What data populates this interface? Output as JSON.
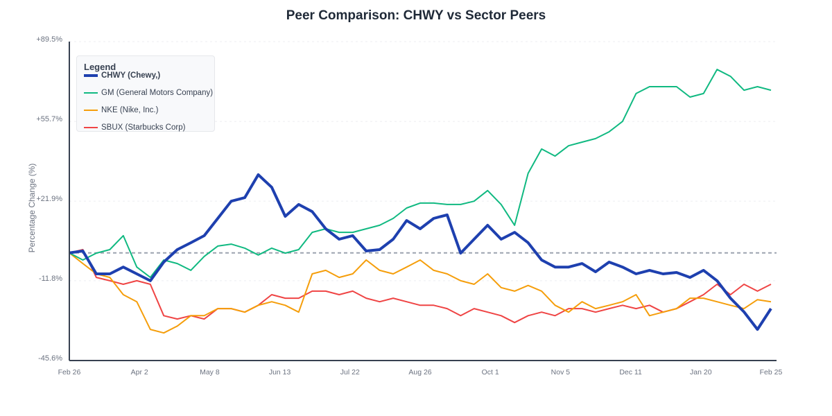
{
  "chart_data": {
    "type": "line",
    "title": "Peer Comparison: CHWY vs Sector Peers",
    "ylabel": "Percentage Change (%)",
    "xlabel": "",
    "ylim": [
      -45.6,
      89.5
    ],
    "y_ticks": [
      "+89.5%",
      "+55.7%",
      "+21.9%",
      "-11.8%",
      "-45.6%"
    ],
    "y_tick_values": [
      89.5,
      55.7,
      21.9,
      -11.8,
      -45.6
    ],
    "x_ticks": [
      "Feb 26",
      "Apr 2",
      "May 8",
      "Jun 13",
      "Jul 22",
      "Aug 26",
      "Oct 1",
      "Nov 5",
      "Dec 11",
      "Jan 20",
      "Feb 25"
    ],
    "grid": true,
    "baseline": 0,
    "legend": {
      "title": "Legend",
      "placement": "top-left"
    },
    "x": [
      "Feb 26",
      "Mar 4",
      "Mar 11",
      "Mar 18",
      "Mar 25",
      "Apr 1",
      "Apr 8",
      "Apr 15",
      "Apr 22",
      "Apr 29",
      "May 6",
      "May 13",
      "May 20",
      "May 27",
      "Jun 3",
      "Jun 10",
      "Jun 17",
      "Jun 24",
      "Jul 1",
      "Jul 8",
      "Jul 15",
      "Jul 22",
      "Jul 29",
      "Aug 5",
      "Aug 12",
      "Aug 19",
      "Aug 26",
      "Sep 2",
      "Sep 9",
      "Sep 16",
      "Sep 23",
      "Sep 30",
      "Oct 7",
      "Oct 14",
      "Oct 21",
      "Oct 28",
      "Nov 4",
      "Nov 11",
      "Nov 18",
      "Nov 25",
      "Dec 2",
      "Dec 9",
      "Dec 16",
      "Dec 23",
      "Dec 30",
      "Jan 6",
      "Jan 13",
      "Jan 20",
      "Jan 27",
      "Feb 3",
      "Feb 10",
      "Feb 17",
      "Feb 24"
    ],
    "series": [
      {
        "name": "CHWY (Chewy,)",
        "color": "#1e40af",
        "values": [
          0,
          0.8,
          -8.9,
          -8.9,
          -6.0,
          -8.9,
          -11.8,
          -3.9,
          1.4,
          4.3,
          7.3,
          14.6,
          21.9,
          23.4,
          33.1,
          27.8,
          15.5,
          20.5,
          17.5,
          10.2,
          5.8,
          7.3,
          0.8,
          1.4,
          5.8,
          13.7,
          10.2,
          14.6,
          16.1,
          -0.1,
          5.8,
          11.7,
          5.8,
          8.7,
          4.3,
          -3.0,
          -6.0,
          -6.0,
          -4.5,
          -8.0,
          -3.9,
          -6.0,
          -8.9,
          -7.4,
          -8.9,
          -8.3,
          -10.4,
          -7.4,
          -11.8,
          -19.2,
          -25.0,
          -32.4,
          -23.6
        ]
      },
      {
        "name": "GM (General Motors Company)",
        "color": "#10b981",
        "values": [
          0,
          -3.0,
          -0.1,
          1.4,
          7.3,
          -6.0,
          -10.4,
          -3.0,
          -4.5,
          -7.4,
          -1.5,
          2.9,
          3.7,
          2.0,
          -0.9,
          2.0,
          -0.1,
          1.4,
          8.7,
          10.2,
          8.7,
          8.7,
          10.2,
          11.7,
          14.6,
          19.0,
          21.1,
          21.1,
          20.5,
          20.5,
          21.9,
          26.4,
          20.5,
          11.7,
          33.7,
          44.0,
          41.0,
          45.4,
          46.9,
          48.4,
          51.3,
          55.7,
          67.5,
          70.4,
          70.4,
          70.4,
          66.0,
          67.5,
          77.7,
          74.8,
          68.9,
          70.4,
          68.9
        ]
      },
      {
        "name": "NKE (Nike, Inc.)",
        "color": "#f59e0b",
        "values": [
          0,
          -4.5,
          -8.9,
          -10.4,
          -17.7,
          -20.7,
          -32.4,
          -33.9,
          -31.0,
          -26.6,
          -26.6,
          -23.6,
          -23.6,
          -25.1,
          -22.2,
          -20.7,
          -22.2,
          -25.1,
          -8.9,
          -7.4,
          -10.4,
          -8.9,
          -3.0,
          -7.4,
          -8.9,
          -6.0,
          -3.0,
          -7.4,
          -8.9,
          -11.8,
          -13.3,
          -8.9,
          -14.7,
          -16.2,
          -13.8,
          -16.2,
          -22.2,
          -25.1,
          -20.7,
          -23.6,
          -22.2,
          -20.7,
          -17.7,
          -26.6,
          -25.1,
          -23.6,
          -19.2,
          -19.2,
          -20.7,
          -22.2,
          -23.6,
          -19.8,
          -20.7
        ]
      },
      {
        "name": "SBUX (Starbucks Corp)",
        "color": "#ef4444",
        "values": [
          0,
          1.4,
          -10.4,
          -11.8,
          -13.3,
          -11.8,
          -13.3,
          -26.6,
          -28.0,
          -26.6,
          -28.0,
          -23.6,
          -23.6,
          -25.1,
          -22.2,
          -17.7,
          -19.2,
          -19.2,
          -16.2,
          -16.2,
          -17.7,
          -16.2,
          -19.2,
          -20.7,
          -19.2,
          -20.7,
          -22.2,
          -22.2,
          -23.6,
          -26.6,
          -23.6,
          -25.1,
          -26.6,
          -29.5,
          -26.6,
          -25.1,
          -26.6,
          -23.6,
          -23.6,
          -25.1,
          -23.6,
          -22.2,
          -23.6,
          -22.2,
          -25.1,
          -23.6,
          -20.7,
          -17.7,
          -13.3,
          -17.7,
          -13.3,
          -16.2,
          -13.3
        ]
      }
    ]
  }
}
